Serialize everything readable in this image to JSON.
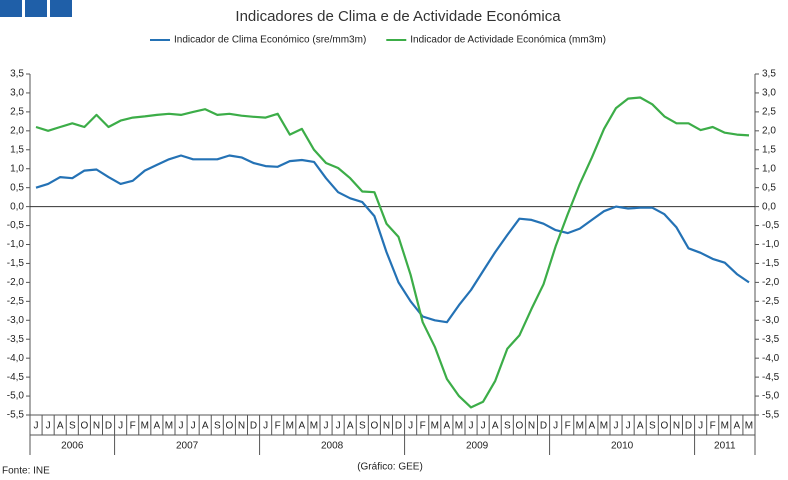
{
  "chart_data": {
    "type": "line",
    "title": "Indicadores de Clima e de Actividade Económica",
    "categories": [
      "J",
      "J",
      "A",
      "S",
      "O",
      "N",
      "D",
      "J",
      "F",
      "M",
      "A",
      "M",
      "J",
      "J",
      "A",
      "S",
      "O",
      "N",
      "D",
      "J",
      "F",
      "M",
      "A",
      "M",
      "J",
      "J",
      "A",
      "S",
      "O",
      "N",
      "D",
      "J",
      "F",
      "M",
      "A",
      "M",
      "J",
      "J",
      "A",
      "S",
      "O",
      "N",
      "D",
      "J",
      "F",
      "M",
      "A",
      "M",
      "J",
      "J",
      "A",
      "S",
      "O",
      "N",
      "D",
      "J",
      "F",
      "M",
      "A",
      "M"
    ],
    "years": [
      "2006",
      "2007",
      "2008",
      "2009",
      "2010",
      "2011"
    ],
    "series": [
      {
        "name": "Indicador de Clima Económico (sre/mm3m)",
        "color": "#2472b5",
        "values": [
          0.5,
          0.6,
          0.78,
          0.75,
          0.95,
          0.98,
          0.78,
          0.6,
          0.68,
          0.95,
          1.1,
          1.25,
          1.35,
          1.25,
          1.25,
          1.25,
          1.35,
          1.3,
          1.15,
          1.07,
          1.05,
          1.2,
          1.23,
          1.18,
          0.75,
          0.38,
          0.22,
          0.12,
          -0.25,
          -1.2,
          -2.0,
          -2.5,
          -2.9,
          -3.0,
          -3.05,
          -2.6,
          -2.2,
          -1.7,
          -1.2,
          -0.75,
          -0.32,
          -0.35,
          -0.45,
          -0.62,
          -0.7,
          -0.58,
          -0.35,
          -0.12,
          0.0,
          -0.05,
          -0.03,
          -0.03,
          -0.2,
          -0.55,
          -1.1,
          -1.22,
          -1.38,
          -1.48,
          -1.78,
          -2.0
        ]
      },
      {
        "name": "Indicador de Actividade Económica (mm3m)",
        "color": "#3cad48",
        "values": [
          2.1,
          2.0,
          2.1,
          2.2,
          2.1,
          2.42,
          2.1,
          2.27,
          2.35,
          2.38,
          2.42,
          2.45,
          2.42,
          2.5,
          2.57,
          2.42,
          2.45,
          2.4,
          2.37,
          2.35,
          2.45,
          1.9,
          2.05,
          1.5,
          1.15,
          1.02,
          0.75,
          0.4,
          0.38,
          -0.45,
          -0.8,
          -1.8,
          -3.05,
          -3.7,
          -4.55,
          -5.0,
          -5.3,
          -5.15,
          -4.6,
          -3.75,
          -3.4,
          -2.7,
          -2.05,
          -1.05,
          -0.2,
          0.6,
          1.3,
          2.05,
          2.6,
          2.85,
          2.88,
          2.7,
          2.38,
          2.2,
          2.2,
          2.02,
          2.1,
          1.95,
          1.9,
          1.88
        ]
      }
    ],
    "ylim": [
      -5.5,
      3.5
    ],
    "yticks": [
      {
        "value": 3.5,
        "label": "3,5"
      },
      {
        "value": 3.0,
        "label": "3,0"
      },
      {
        "value": 2.5,
        "label": "2,5"
      },
      {
        "value": 2.0,
        "label": "2,0"
      },
      {
        "value": 1.5,
        "label": "1,5"
      },
      {
        "value": 1.0,
        "label": "1,0"
      },
      {
        "value": 0.5,
        "label": "0,5"
      },
      {
        "value": 0,
        "label": "0,0"
      },
      {
        "value": -0.5,
        "label": "-0,5"
      },
      {
        "value": -1.0,
        "label": "-1,0"
      },
      {
        "value": -1.5,
        "label": "-1,5"
      },
      {
        "value": -2.0,
        "label": "-2,0"
      },
      {
        "value": -2.5,
        "label": "-2,5"
      },
      {
        "value": -3.0,
        "label": "-3,0"
      },
      {
        "value": -3.5,
        "label": "-3,5"
      },
      {
        "value": -4.0,
        "label": "-4,0"
      },
      {
        "value": -4.5,
        "label": "-4,5"
      },
      {
        "value": -5.0,
        "label": "-5,0"
      },
      {
        "value": -5.5,
        "label": "-5,5"
      }
    ],
    "source": "Fonte: INE",
    "credit": "(Gráfico: GEE)"
  }
}
